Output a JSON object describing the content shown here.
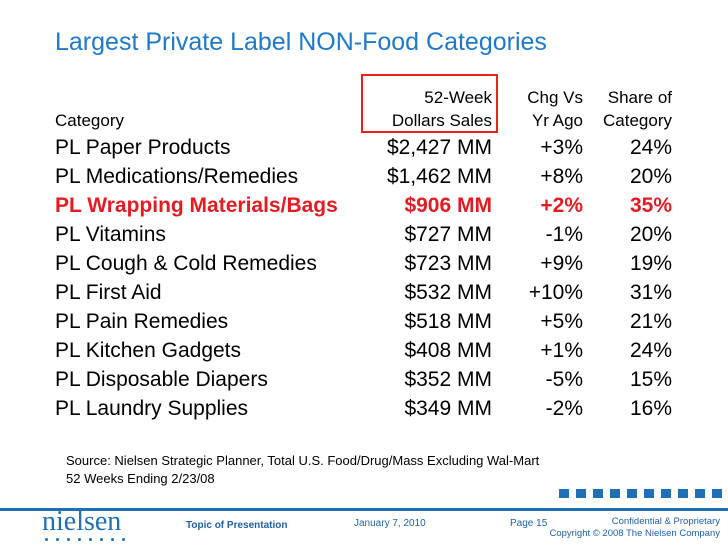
{
  "title": "Largest Private Label NON-Food Categories",
  "headers": {
    "category": "Category",
    "sales_line1": "52-Week",
    "sales_line2": "Dollars Sales",
    "chg_line1": "Chg Vs",
    "chg_line2": "Yr Ago",
    "share_line1": "Share of",
    "share_line2": "Category"
  },
  "rows": [
    {
      "category": "PL Paper Products",
      "sales": "$2,427 MM",
      "chg": "+3%",
      "share": "24%"
    },
    {
      "category": "PL Medications/Remedies",
      "sales": "$1,462 MM",
      "chg": "+8%",
      "share": "20%"
    },
    {
      "category": "PL Wrapping Materials/Bags",
      "sales": "$906 MM",
      "chg": "+2%",
      "share": "35%"
    },
    {
      "category": "PL Vitamins",
      "sales": "$727 MM",
      "chg": "-1%",
      "share": "20%"
    },
    {
      "category": "PL Cough & Cold Remedies",
      "sales": "$723 MM",
      "chg": "+9%",
      "share": "19%"
    },
    {
      "category": "PL First Aid",
      "sales": "$532 MM",
      "chg": "+10%",
      "share": "31%"
    },
    {
      "category": "PL Pain Remedies",
      "sales": "$518 MM",
      "chg": "+5%",
      "share": "21%"
    },
    {
      "category": "PL Kitchen Gadgets",
      "sales": "$408 MM",
      "chg": "+1%",
      "share": "24%"
    },
    {
      "category": "PL Disposable Diapers",
      "sales": "$352 MM",
      "chg": "-5%",
      "share": "15%"
    },
    {
      "category": "PL Laundry Supplies",
      "sales": "$349 MM",
      "chg": "-2%",
      "share": "16%"
    }
  ],
  "source": {
    "line1": "Source: Nielsen Strategic Planner, Total U.S. Food/Drug/Mass Excluding Wal-Mart",
    "line2": "52 Weeks Ending 2/23/08"
  },
  "footer": {
    "logo": "nielsen",
    "topic": "Topic of Presentation",
    "date": "January 7, 2010",
    "page": "Page 15",
    "confidential": "Confidential & Proprietary",
    "copyright": "Copyright © 2008 The Nielsen Company"
  },
  "colors": {
    "title": "#1f78c8",
    "highlight": "#e31b23",
    "brand": "#1f6fb5"
  }
}
